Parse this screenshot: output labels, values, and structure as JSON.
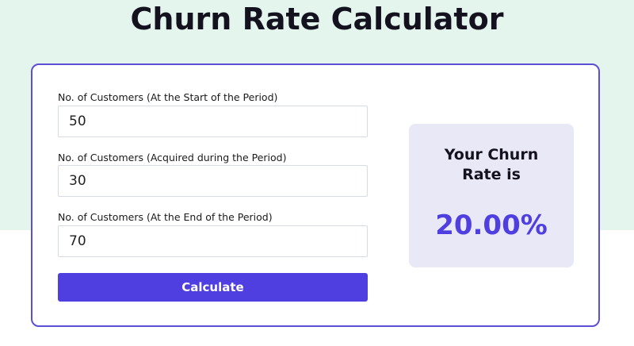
{
  "title": "Churn Rate Calculator",
  "form": {
    "start_label": "No. of Customers (At the Start of the Period)",
    "start_value": "50",
    "acquired_label": "No. of Customers (Acquired during the Period)",
    "acquired_value": "30",
    "end_label": "No. of Customers (At the End of the Period)",
    "end_value": "70",
    "calculate_label": "Calculate"
  },
  "result": {
    "heading": "Your Churn Rate is",
    "value": "20.00%"
  },
  "colors": {
    "accent": "#4f3fe0",
    "band": "#e3f5ec",
    "result_bg": "#e8e8f7"
  }
}
